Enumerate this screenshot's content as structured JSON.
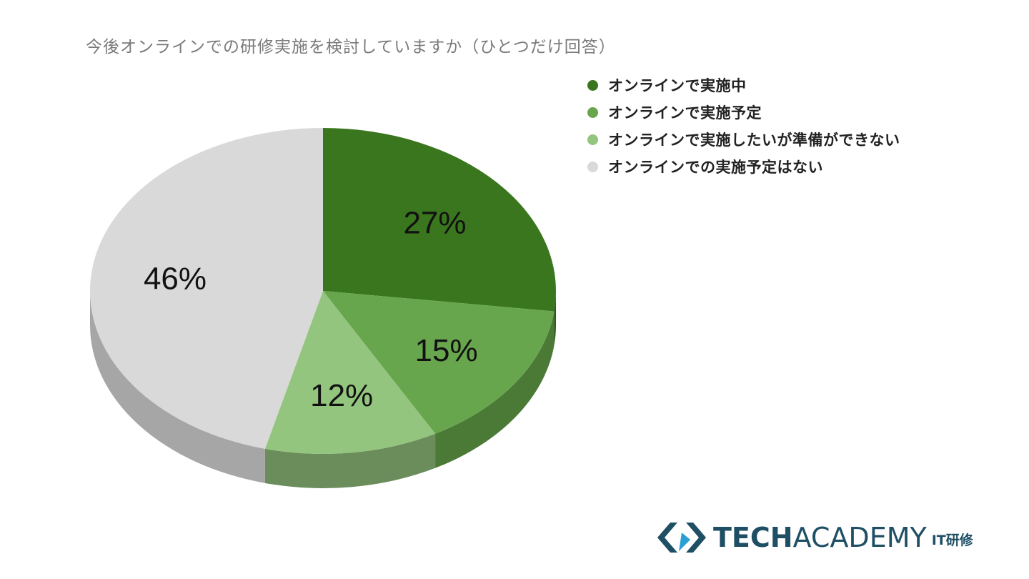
{
  "chart_data": {
    "type": "pie",
    "title": "今後オンラインでの研修実施を検討していますか（ひとつだけ回答）",
    "slices": [
      {
        "label": "オンラインで実施中",
        "value": 27,
        "display": "27%",
        "color": "#3a761e",
        "side_color": "#2d5a17"
      },
      {
        "label": "オンラインで実施予定",
        "value": 15,
        "display": "15%",
        "color": "#68a64e",
        "side_color": "#4b7a37"
      },
      {
        "label": "オンラインで実施したいが準備ができない",
        "value": 12,
        "display": "12%",
        "color": "#93c57e",
        "side_color": "#6b8d5c"
      },
      {
        "label": "オンラインでの実施予定はない",
        "value": 46,
        "display": "46%",
        "color": "#d9d9d9",
        "side_color": "#a6a6a6"
      }
    ],
    "legend_position": "top-right",
    "three_d": true
  },
  "logo": {
    "text_bold": "TECH",
    "text_light": "ACADEMY",
    "suffix": "IT研修",
    "color": "#1f4f64",
    "accent_color": "#2a9fd6"
  }
}
